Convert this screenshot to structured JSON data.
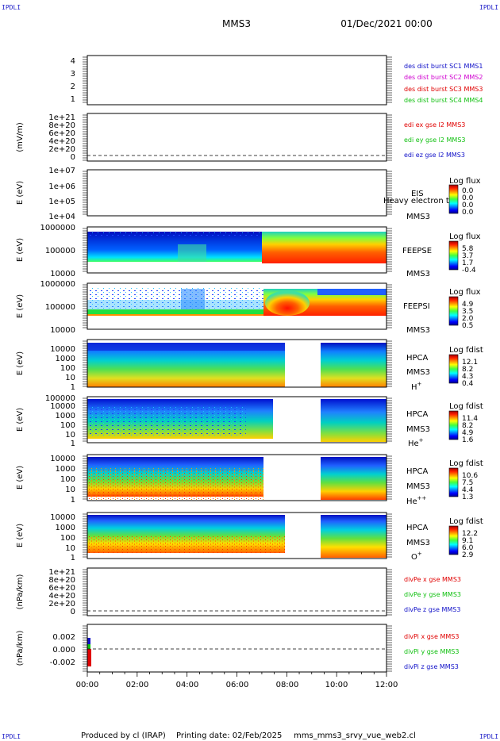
{
  "header": {
    "spacecraft": "MMS3",
    "date": "01/Dec/2021 00:00"
  },
  "corner_label": "IPDLI",
  "footer": {
    "produced_by": "Produced by cl (IRAP)",
    "printing_date": "Printing date: 02/Feb/2025",
    "filename": "mms_mms3_srvy_vue_web2.cl"
  },
  "colors": {
    "red": "#e00000",
    "magenta": "#d000d0",
    "green": "#10c010",
    "blue": "#1010c8",
    "black": "#000000"
  },
  "chart_data": {
    "type": "multi-panel time series / spectrogram",
    "x_tick_labels": [
      "00:00",
      "02:00",
      "04:00",
      "06:00",
      "08:00",
      "10:00",
      "12:00"
    ],
    "xlim": [
      "00:00",
      "12:00"
    ],
    "panels": [
      {
        "id": "counts",
        "ylabel": "",
        "yticks": [
          "4",
          "3",
          "2",
          "1"
        ],
        "legend": [
          {
            "text": "des dist burst SC1 MMS1",
            "color": "blue"
          },
          {
            "text": "des dist burst SC2 MMS2",
            "color": "magenta"
          },
          {
            "text": "des dist burst SC3 MMS3",
            "color": "red"
          },
          {
            "text": "des dist burst SC4 MMS4",
            "color": "green"
          }
        ]
      },
      {
        "id": "edi",
        "ylabel": "(mV/m)",
        "yticks": [
          "1e+21",
          "8e+20",
          "6e+20",
          "4e+20",
          "2e+20",
          "0"
        ],
        "legend": [
          {
            "text": "edi ex gse l2 MMS3",
            "color": "red"
          },
          {
            "text": "edi ey gse l2 MMS3",
            "color": "green"
          },
          {
            "text": "edi ez gse l2 MMS3",
            "color": "blue"
          }
        ]
      },
      {
        "id": "eis",
        "ylabel": "E (eV)",
        "yticks": [
          "1e+07",
          "1e+06",
          "1e+05",
          "1e+04"
        ],
        "side_labels": [
          "EIS",
          "MMS3"
        ],
        "overlay_text": "Heavy electron to",
        "colorbar_title": "Log flux",
        "colorbar_ticks": [
          "0.0",
          "0.0",
          "0.0",
          "0.0"
        ]
      },
      {
        "id": "feepse",
        "ylabel": "E (eV)",
        "yticks": [
          "1000000",
          "100000",
          "10000"
        ],
        "side_labels": [
          "FEEPSE",
          "MMS3"
        ],
        "colorbar_title": "Log flux",
        "colorbar_ticks": [
          "5.8",
          "3.7",
          "1.7",
          "-0.4"
        ]
      },
      {
        "id": "feepsi",
        "ylabel": "E (eV)",
        "yticks": [
          "1000000",
          "100000",
          "10000"
        ],
        "side_labels": [
          "FEEPSI",
          "MMS3"
        ],
        "colorbar_title": "Log flux",
        "colorbar_ticks": [
          "4.9",
          "3.5",
          "2.0",
          "0.5"
        ]
      },
      {
        "id": "hpca_h",
        "ylabel": "E (eV)",
        "yticks": [
          "10000",
          "1000",
          "100",
          "10",
          "1"
        ],
        "side_labels": [
          "HPCA",
          "MMS3"
        ],
        "species": "H",
        "species_sup": "+",
        "colorbar_title": "Log fdist",
        "colorbar_ticks": [
          "12.1",
          "8.2",
          "4.3",
          "0.4"
        ]
      },
      {
        "id": "hpca_he",
        "ylabel": "E (eV)",
        "yticks": [
          "100000",
          "10000",
          "1000",
          "100",
          "10",
          "1"
        ],
        "side_labels": [
          "HPCA",
          "MMS3"
        ],
        "species": "He",
        "species_sup": "+",
        "colorbar_title": "Log fdist",
        "colorbar_ticks": [
          "11.4",
          "8.2",
          "4.9",
          "1.6"
        ]
      },
      {
        "id": "hpca_hepp",
        "ylabel": "E (eV)",
        "yticks": [
          "10000",
          "1000",
          "100",
          "10",
          "1"
        ],
        "side_labels": [
          "HPCA",
          "MMS3"
        ],
        "species": "He",
        "species_sup": "++",
        "colorbar_title": "Log fdist",
        "colorbar_ticks": [
          "10.6",
          "7.5",
          "4.4",
          "1.3"
        ]
      },
      {
        "id": "hpca_o",
        "ylabel": "E (eV)",
        "yticks": [
          "10000",
          "1000",
          "100",
          "10",
          "1"
        ],
        "side_labels": [
          "HPCA",
          "MMS3"
        ],
        "species": "O",
        "species_sup": "+",
        "colorbar_title": "Log fdist",
        "colorbar_ticks": [
          "12.2",
          "9.1",
          "6.0",
          "2.9"
        ]
      },
      {
        "id": "divpe",
        "ylabel": "(nPa/km)",
        "yticks": [
          "1e+21",
          "8e+20",
          "6e+20",
          "4e+20",
          "2e+20",
          "0"
        ],
        "legend": [
          {
            "text": "divPe x gse MMS3",
            "color": "red"
          },
          {
            "text": "divPe y gse MMS3",
            "color": "green"
          },
          {
            "text": "divPe z gse MMS3",
            "color": "blue"
          }
        ]
      },
      {
        "id": "divpi",
        "ylabel": "(nPa/km)",
        "yticks": [
          "0.002",
          "0.000",
          "-0.002"
        ],
        "legend": [
          {
            "text": "divPi x gse MMS3",
            "color": "red"
          },
          {
            "text": "divPi y gse MMS3",
            "color": "green"
          },
          {
            "text": "divPi z gse MMS3",
            "color": "blue"
          }
        ]
      }
    ]
  }
}
